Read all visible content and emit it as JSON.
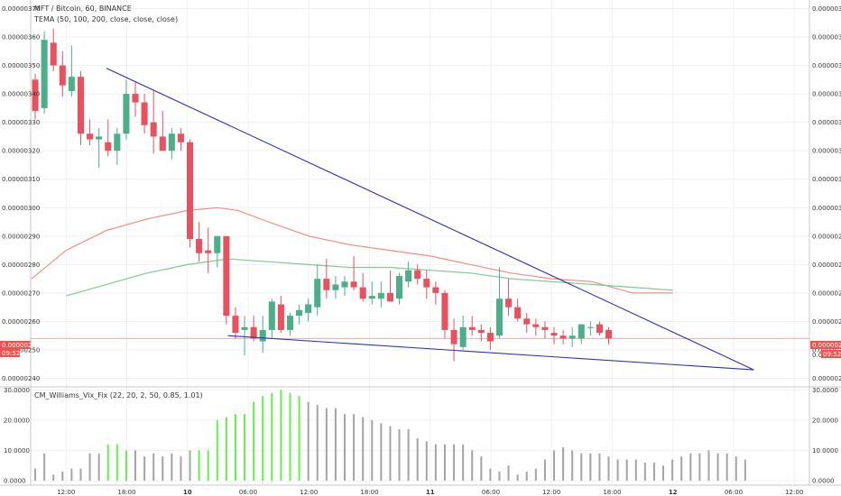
{
  "chart_data": [
    {
      "type": "candlestick",
      "title": "MFT / Bitcoin, 60, BINANCE",
      "indicator": "TEMA (50, 100, 200, close, close, close)",
      "ylim": [
        2.37e-06,
        3.73e-06
      ],
      "y_ticks": [
        "0.00000370",
        "0.00000360",
        "0.00000350",
        "0.00000340",
        "0.00000330",
        "0.00000320",
        "0.00000310",
        "0.00000300",
        "0.00000290",
        "0.00000280",
        "0.00000270",
        "0.00000260",
        "0.00000250",
        "0.00000240"
      ],
      "y_tick_values": [
        3.7e-06,
        3.6e-06,
        3.5e-06,
        3.4e-06,
        3.3e-06,
        3.2e-06,
        3.1e-06,
        3e-06,
        2.9e-06,
        2.8e-06,
        2.7e-06,
        2.6e-06,
        2.5e-06,
        2.4e-06
      ],
      "x_ticks": [
        "12:00",
        "18:00",
        "10",
        "06:00",
        "12:00",
        "18:00",
        "11",
        "06:00",
        "12:00",
        "18:00",
        "12",
        "06:00",
        "12:00"
      ],
      "x_tick_hours": [
        12,
        18,
        24,
        30,
        36,
        42,
        48,
        54,
        60,
        66,
        72,
        78,
        84
      ],
      "x_start_hour": 8.5,
      "x_end_hour": 85.5,
      "candles": [
        {
          "o": 3.45e-06,
          "h": 3.47e-06,
          "l": 3.31e-06,
          "c": 3.34e-06
        },
        {
          "o": 3.35e-06,
          "h": 3.62e-06,
          "l": 3.33e-06,
          "c": 3.59e-06
        },
        {
          "o": 3.58e-06,
          "h": 3.63e-06,
          "l": 3.48e-06,
          "c": 3.5e-06
        },
        {
          "o": 3.5e-06,
          "h": 3.55e-06,
          "l": 3.39e-06,
          "c": 3.43e-06
        },
        {
          "o": 3.41e-06,
          "h": 3.57e-06,
          "l": 3.39e-06,
          "c": 3.46e-06
        },
        {
          "o": 3.46e-06,
          "h": 3.48e-06,
          "l": 3.22e-06,
          "c": 3.26e-06
        },
        {
          "o": 3.26e-06,
          "h": 3.31e-06,
          "l": 3.22e-06,
          "c": 3.24e-06
        },
        {
          "o": 3.24e-06,
          "h": 3.28e-06,
          "l": 3.14e-06,
          "c": 3.25e-06
        },
        {
          "o": 3.23e-06,
          "h": 3.31e-06,
          "l": 3.18e-06,
          "c": 3.2e-06
        },
        {
          "o": 3.2e-06,
          "h": 3.28e-06,
          "l": 3.15e-06,
          "c": 3.26e-06
        },
        {
          "o": 3.26e-06,
          "h": 3.45e-06,
          "l": 3.24e-06,
          "c": 3.4e-06
        },
        {
          "o": 3.4e-06,
          "h": 3.44e-06,
          "l": 3.32e-06,
          "c": 3.37e-06
        },
        {
          "o": 3.37e-06,
          "h": 3.4e-06,
          "l": 3.26e-06,
          "c": 3.29e-06
        },
        {
          "o": 3.3e-06,
          "h": 3.41e-06,
          "l": 3.19e-06,
          "c": 3.25e-06
        },
        {
          "o": 3.25e-06,
          "h": 3.34e-06,
          "l": 3.21e-06,
          "c": 3.2e-06
        },
        {
          "o": 3.2e-06,
          "h": 3.28e-06,
          "l": 3.17e-06,
          "c": 3.26e-06
        },
        {
          "o": 3.26e-06,
          "h": 3.28e-06,
          "l": 3.2e-06,
          "c": 3.23e-06
        },
        {
          "o": 3.23e-06,
          "h": 3.24e-06,
          "l": 2.86e-06,
          "c": 2.89e-06
        },
        {
          "o": 2.89e-06,
          "h": 2.95e-06,
          "l": 2.81e-06,
          "c": 2.84e-06
        },
        {
          "o": 2.85e-06,
          "h": 2.93e-06,
          "l": 2.77e-06,
          "c": 2.84e-06
        },
        {
          "o": 2.84e-06,
          "h": 2.9e-06,
          "l": 2.79e-06,
          "c": 2.9e-06
        },
        {
          "o": 2.9e-06,
          "h": 2.9e-06,
          "l": 2.59e-06,
          "c": 2.62e-06
        },
        {
          "o": 2.62e-06,
          "h": 2.65e-06,
          "l": 2.54e-06,
          "c": 2.56e-06
        },
        {
          "o": 2.57e-06,
          "h": 2.62e-06,
          "l": 2.48e-06,
          "c": 2.58e-06
        },
        {
          "o": 2.58e-06,
          "h": 2.62e-06,
          "l": 2.53e-06,
          "c": 2.54e-06
        },
        {
          "o": 2.53e-06,
          "h": 2.62e-06,
          "l": 2.49e-06,
          "c": 2.57e-06
        },
        {
          "o": 2.57e-06,
          "h": 2.68e-06,
          "l": 2.54e-06,
          "c": 2.67e-06
        },
        {
          "o": 2.66e-06,
          "h": 2.69e-06,
          "l": 2.56e-06,
          "c": 2.57e-06
        },
        {
          "o": 2.57e-06,
          "h": 2.63e-06,
          "l": 2.55e-06,
          "c": 2.62e-06
        },
        {
          "o": 2.62e-06,
          "h": 2.66e-06,
          "l": 2.59e-06,
          "c": 2.64e-06
        },
        {
          "o": 2.63e-06,
          "h": 2.68e-06,
          "l": 2.6e-06,
          "c": 2.66e-06
        },
        {
          "o": 2.65e-06,
          "h": 2.8e-06,
          "l": 2.62e-06,
          "c": 2.75e-06
        },
        {
          "o": 2.75e-06,
          "h": 2.82e-06,
          "l": 2.68e-06,
          "c": 2.71e-06
        },
        {
          "o": 2.71e-06,
          "h": 2.76e-06,
          "l": 2.68e-06,
          "c": 2.73e-06
        },
        {
          "o": 2.72e-06,
          "h": 2.76e-06,
          "l": 2.69e-06,
          "c": 2.74e-06
        },
        {
          "o": 2.74e-06,
          "h": 2.83e-06,
          "l": 2.71e-06,
          "c": 2.72e-06
        },
        {
          "o": 2.72e-06,
          "h": 2.77e-06,
          "l": 2.67e-06,
          "c": 2.68e-06
        },
        {
          "o": 2.68e-06,
          "h": 2.74e-06,
          "l": 2.66e-06,
          "c": 2.69e-06
        },
        {
          "o": 2.68e-06,
          "h": 2.74e-06,
          "l": 2.65e-06,
          "c": 2.7e-06
        },
        {
          "o": 2.7e-06,
          "h": 2.78e-06,
          "l": 2.67e-06,
          "c": 2.67e-06
        },
        {
          "o": 2.68e-06,
          "h": 2.77e-06,
          "l": 2.66e-06,
          "c": 2.76e-06
        },
        {
          "o": 2.74e-06,
          "h": 2.81e-06,
          "l": 2.72e-06,
          "c": 2.78e-06
        },
        {
          "o": 2.78e-06,
          "h": 2.8e-06,
          "l": 2.73e-06,
          "c": 2.75e-06
        },
        {
          "o": 2.75e-06,
          "h": 2.78e-06,
          "l": 2.68e-06,
          "c": 2.72e-06
        },
        {
          "o": 2.72e-06,
          "h": 2.74e-06,
          "l": 2.66e-06,
          "c": 2.7e-06
        },
        {
          "o": 2.7e-06,
          "h": 2.71e-06,
          "l": 2.54e-06,
          "c": 2.57e-06
        },
        {
          "o": 2.57e-06,
          "h": 2.61e-06,
          "l": 2.46e-06,
          "c": 2.52e-06
        },
        {
          "o": 2.51e-06,
          "h": 2.62e-06,
          "l": 2.5e-06,
          "c": 2.58e-06
        },
        {
          "o": 2.58e-06,
          "h": 2.62e-06,
          "l": 2.55e-06,
          "c": 2.57e-06
        },
        {
          "o": 2.57e-06,
          "h": 2.59e-06,
          "l": 2.53e-06,
          "c": 2.56e-06
        },
        {
          "o": 2.56e-06,
          "h": 2.58e-06,
          "l": 2.5e-06,
          "c": 2.53e-06
        },
        {
          "o": 2.55e-06,
          "h": 2.79e-06,
          "l": 2.54e-06,
          "c": 2.68e-06
        },
        {
          "o": 2.68e-06,
          "h": 2.75e-06,
          "l": 2.62e-06,
          "c": 2.65e-06
        },
        {
          "o": 2.65e-06,
          "h": 2.68e-06,
          "l": 2.6e-06,
          "c": 2.61e-06
        },
        {
          "o": 2.61e-06,
          "h": 2.63e-06,
          "l": 2.56e-06,
          "c": 2.59e-06
        },
        {
          "o": 2.59e-06,
          "h": 2.61e-06,
          "l": 2.55e-06,
          "c": 2.58e-06
        },
        {
          "o": 2.58e-06,
          "h": 2.6e-06,
          "l": 2.54e-06,
          "c": 2.57e-06
        },
        {
          "o": 2.56e-06,
          "h": 2.58e-06,
          "l": 2.52e-06,
          "c": 2.55e-06
        },
        {
          "o": 2.55e-06,
          "h": 2.57e-06,
          "l": 2.52e-06,
          "c": 2.54e-06
        },
        {
          "o": 2.54e-06,
          "h": 2.58e-06,
          "l": 2.51e-06,
          "c": 2.55e-06
        },
        {
          "o": 2.54e-06,
          "h": 2.59e-06,
          "l": 2.52e-06,
          "c": 2.59e-06
        },
        {
          "o": 2.58e-06,
          "h": 2.6e-06,
          "l": 2.55e-06,
          "c": 2.58e-06
        },
        {
          "o": 2.59e-06,
          "h": 2.6e-06,
          "l": 2.55e-06,
          "c": 2.56e-06
        },
        {
          "o": 2.57e-06,
          "h": 2.58e-06,
          "l": 2.52e-06,
          "c": 2.54e-06
        }
      ],
      "candle_start_hour": 8.5,
      "candle_step_hours": 0.9,
      "series": [
        {
          "color": "#f28c82",
          "points": [
            [
              8.6,
              2.75e-06
            ],
            [
              12,
              2.85e-06
            ],
            [
              16,
              2.92e-06
            ],
            [
              20,
              2.96e-06
            ],
            [
              24,
              2.99e-06
            ],
            [
              27,
              3e-06
            ],
            [
              29,
              2.99e-06
            ],
            [
              32,
              2.95e-06
            ],
            [
              36,
              2.9e-06
            ],
            [
              40,
              2.87e-06
            ],
            [
              44,
              2.85e-06
            ],
            [
              48,
              2.83e-06
            ],
            [
              52,
              2.8e-06
            ],
            [
              56,
              2.77e-06
            ],
            [
              60,
              2.75e-06
            ],
            [
              64,
              2.74e-06
            ],
            [
              68,
              2.7e-06
            ],
            [
              72,
              2.7e-06
            ]
          ]
        },
        {
          "color": "#80c990",
          "points": [
            [
              12,
              2.69e-06
            ],
            [
              16,
              2.73e-06
            ],
            [
              20,
              2.77e-06
            ],
            [
              24,
              2.8e-06
            ],
            [
              28,
              2.82e-06
            ],
            [
              32,
              2.81e-06
            ],
            [
              36,
              2.8e-06
            ],
            [
              40,
              2.79e-06
            ],
            [
              44,
              2.79e-06
            ],
            [
              48,
              2.78e-06
            ],
            [
              52,
              2.77e-06
            ],
            [
              56,
              2.75e-06
            ],
            [
              60,
              2.74e-06
            ],
            [
              64,
              2.73e-06
            ],
            [
              68,
              2.72e-06
            ],
            [
              72,
              2.71e-06
            ]
          ]
        }
      ],
      "trendlines": [
        {
          "color": "#2d2fb0",
          "from": [
            16,
            3.49e-06
          ],
          "to": [
            80,
            2.43e-06
          ]
        },
        {
          "color": "#2d2fb0",
          "from": [
            28,
            2.55e-06
          ],
          "to": [
            80,
            2.43e-06
          ]
        }
      ],
      "last_price_label": "0.00000254",
      "countdown_label": "09:52",
      "hidden_axis_label": "0.000"
    },
    {
      "type": "bar",
      "title": "CM_Williams_Vix_Fix (22, 20, 2, 50, 0.85, 1.01)",
      "ylim": [
        -1.5,
        31
      ],
      "y_ticks": [
        "30.0000",
        "20.0000",
        "10.0000",
        "0.0000"
      ],
      "y_tick_values": [
        30,
        20,
        10,
        0
      ],
      "colors": {
        "normal": "#a4a4a4",
        "highlight": "#66ee4f"
      },
      "values": [
        4,
        9,
        2,
        3,
        4,
        4,
        9,
        9,
        12,
        12,
        10,
        10,
        8,
        9,
        8,
        9,
        8,
        10,
        10,
        10,
        20,
        21,
        22,
        22,
        26,
        28,
        29,
        30,
        29,
        28,
        26,
        25,
        24,
        24,
        22,
        22,
        21,
        20,
        19,
        18,
        17,
        17,
        14,
        13,
        12,
        12,
        12,
        12,
        10,
        8,
        4,
        3,
        5,
        2,
        3,
        4,
        7,
        10,
        11,
        10,
        9,
        9,
        9,
        8,
        7,
        7,
        7,
        6,
        6,
        5,
        7,
        8,
        9,
        9,
        10,
        9,
        9,
        8,
        7
      ],
      "highlight": [
        false,
        false,
        false,
        false,
        false,
        false,
        false,
        false,
        true,
        true,
        true,
        false,
        false,
        false,
        false,
        false,
        false,
        false,
        true,
        true,
        true,
        true,
        true,
        true,
        true,
        true,
        true,
        true,
        true,
        true,
        false,
        false,
        false,
        false,
        false,
        false,
        false,
        false,
        false,
        false,
        false,
        false,
        false,
        false,
        false,
        false,
        false,
        false,
        false,
        false,
        false,
        false,
        false,
        false,
        false,
        false,
        false,
        false,
        false,
        false,
        false,
        false,
        false,
        false,
        false,
        false,
        false,
        false,
        false,
        false,
        false,
        false,
        false,
        false,
        false,
        false,
        false,
        false,
        false
      ]
    }
  ]
}
